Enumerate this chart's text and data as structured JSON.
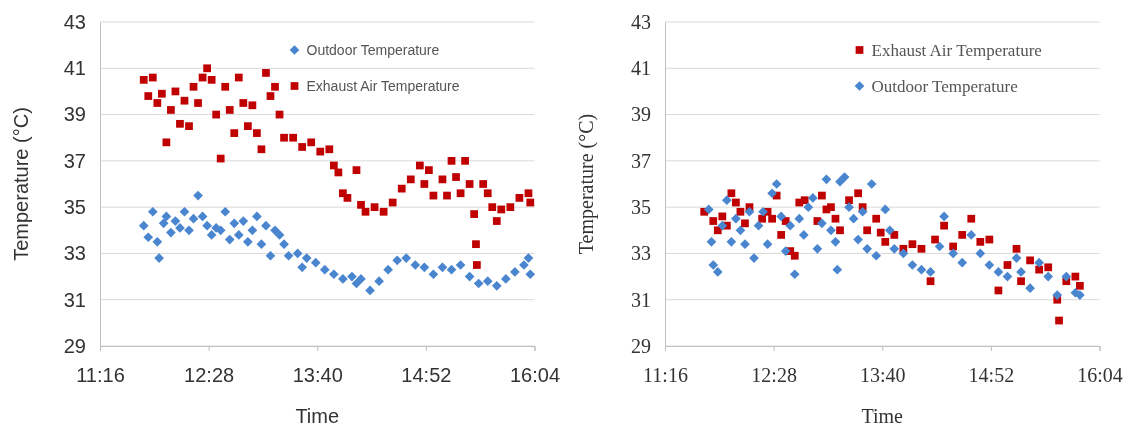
{
  "chart_data": [
    {
      "type": "scatter",
      "xlabel": "Time",
      "ylabel": "Temperature (°C)",
      "xlim": [
        11.2667,
        16.0667
      ],
      "ylim": [
        29,
        43
      ],
      "xticks": [
        {
          "value": 11.2667,
          "label": "11:16"
        },
        {
          "value": 12.4667,
          "label": "12:28"
        },
        {
          "value": 13.6667,
          "label": "13:40"
        },
        {
          "value": 14.8667,
          "label": "14:52"
        },
        {
          "value": 16.0667,
          "label": "16:04"
        }
      ],
      "yticks": [
        29,
        31,
        33,
        35,
        37,
        39,
        41,
        43
      ],
      "grid": "y",
      "legend": "top right",
      "series": [
        {
          "name": "Outdoor Temperature",
          "color": "#4a86cf",
          "marker": "diamond",
          "x": [
            11.75,
            11.8,
            11.85,
            11.9,
            11.92,
            11.97,
            12.0,
            12.05,
            12.1,
            12.15,
            12.2,
            12.25,
            12.3,
            12.35,
            12.4,
            12.45,
            12.5,
            12.55,
            12.6,
            12.65,
            12.7,
            12.75,
            12.8,
            12.85,
            12.9,
            12.95,
            13.0,
            13.05,
            13.1,
            13.15,
            13.2,
            13.25,
            13.3,
            13.35,
            13.45,
            13.5,
            13.55,
            13.65,
            13.75,
            13.85,
            13.95,
            14.05,
            14.1,
            14.15,
            14.25,
            14.35,
            14.45,
            14.55,
            14.65,
            14.75,
            14.85,
            14.95,
            15.05,
            15.15,
            15.25,
            15.35,
            15.45,
            15.55,
            15.65,
            15.75,
            15.85,
            15.95,
            16.0,
            16.02
          ],
          "values": [
            34.2,
            33.7,
            34.8,
            33.5,
            32.8,
            34.3,
            34.6,
            33.9,
            34.4,
            34.1,
            34.8,
            34.0,
            34.5,
            35.5,
            34.6,
            34.2,
            33.8,
            34.1,
            34.0,
            34.8,
            33.6,
            34.3,
            33.8,
            34.4,
            33.5,
            34.0,
            34.6,
            33.4,
            34.2,
            32.9,
            34.0,
            33.8,
            33.4,
            32.9,
            33.0,
            32.4,
            32.8,
            32.6,
            32.3,
            32.1,
            31.9,
            32.0,
            31.7,
            31.9,
            31.4,
            31.8,
            32.3,
            32.7,
            32.8,
            32.5,
            32.4,
            32.1,
            32.4,
            32.3,
            32.5,
            32.0,
            31.7,
            31.8,
            31.6,
            31.9,
            32.2,
            32.5,
            32.8,
            32.1
          ]
        },
        {
          "name": "Exhaust Air Temperature",
          "color": "#c00000",
          "marker": "square",
          "x": [
            11.75,
            11.8,
            11.85,
            11.9,
            11.95,
            12.0,
            12.05,
            12.1,
            12.15,
            12.2,
            12.25,
            12.3,
            12.35,
            12.4,
            12.45,
            12.5,
            12.55,
            12.6,
            12.65,
            12.7,
            12.75,
            12.8,
            12.85,
            12.9,
            12.95,
            13.0,
            13.05,
            13.1,
            13.15,
            13.2,
            13.25,
            13.3,
            13.4,
            13.5,
            13.6,
            13.7,
            13.8,
            13.85,
            13.9,
            13.95,
            14.0,
            14.1,
            14.15,
            14.2,
            14.3,
            14.4,
            14.5,
            14.6,
            14.7,
            14.8,
            14.85,
            14.9,
            14.95,
            15.05,
            15.1,
            15.15,
            15.2,
            15.25,
            15.3,
            15.35,
            15.4,
            15.42,
            15.43,
            15.5,
            15.55,
            15.6,
            15.65,
            15.7,
            15.8,
            15.9,
            16.0,
            16.02
          ],
          "values": [
            40.5,
            39.8,
            40.6,
            39.5,
            39.9,
            37.8,
            39.2,
            40.0,
            38.6,
            39.6,
            38.5,
            40.2,
            39.5,
            40.6,
            41.0,
            40.5,
            39.0,
            37.1,
            40.2,
            39.2,
            38.2,
            40.6,
            39.5,
            38.5,
            39.4,
            38.2,
            37.5,
            40.8,
            39.8,
            40.2,
            39.0,
            38.0,
            38.0,
            37.6,
            37.8,
            37.4,
            37.5,
            36.8,
            36.5,
            35.6,
            35.4,
            36.6,
            35.1,
            34.8,
            35.0,
            34.8,
            35.2,
            35.8,
            36.2,
            36.8,
            36.0,
            36.6,
            35.5,
            36.2,
            35.5,
            37.0,
            36.3,
            35.6,
            37.0,
            36.0,
            34.7,
            33.4,
            32.5,
            36.0,
            35.6,
            35.0,
            34.4,
            34.9,
            35.0,
            35.4,
            35.6,
            35.2
          ]
        }
      ]
    },
    {
      "type": "scatter",
      "xlabel": "Time",
      "ylabel": "Temperature (°C)",
      "xlim": [
        11.2667,
        16.0667
      ],
      "ylim": [
        29,
        43
      ],
      "xticks": [
        {
          "value": 11.2667,
          "label": "11:16"
        },
        {
          "value": 12.4667,
          "label": "12:28"
        },
        {
          "value": 13.6667,
          "label": "13:40"
        },
        {
          "value": 14.8667,
          "label": "14:52"
        },
        {
          "value": 16.0667,
          "label": "16:04"
        }
      ],
      "yticks": [
        29,
        31,
        33,
        35,
        37,
        39,
        41,
        43
      ],
      "grid": "y",
      "legend": "top right",
      "series": [
        {
          "name": "Exhaust Air Temperature",
          "color": "#c00000",
          "marker": "square",
          "x": [
            11.7,
            11.8,
            11.85,
            11.9,
            11.95,
            12.0,
            12.05,
            12.1,
            12.15,
            12.2,
            12.34,
            12.4,
            12.45,
            12.5,
            12.55,
            12.6,
            12.65,
            12.7,
            12.75,
            12.81,
            12.95,
            13.0,
            13.05,
            13.1,
            13.15,
            13.2,
            13.3,
            13.4,
            13.45,
            13.5,
            13.6,
            13.65,
            13.7,
            13.8,
            13.9,
            14.0,
            14.1,
            14.2,
            14.25,
            14.35,
            14.45,
            14.55,
            14.65,
            14.75,
            14.85,
            14.95,
            15.05,
            15.15,
            15.2,
            15.3,
            15.4,
            15.5,
            15.6,
            15.62,
            15.7,
            15.8,
            15.85
          ],
          "values": [
            34.8,
            34.4,
            34.0,
            34.6,
            34.2,
            35.6,
            35.2,
            34.8,
            34.3,
            35.0,
            34.5,
            34.8,
            34.5,
            35.5,
            33.8,
            34.4,
            33.1,
            32.9,
            35.2,
            35.3,
            34.4,
            35.5,
            34.9,
            35.0,
            34.5,
            34.0,
            35.3,
            35.6,
            35.0,
            34.0,
            34.5,
            33.9,
            33.5,
            33.8,
            33.2,
            33.4,
            33.2,
            31.8,
            33.6,
            34.2,
            33.3,
            33.8,
            34.5,
            33.5,
            33.6,
            31.4,
            32.5,
            33.2,
            31.8,
            32.7,
            32.3,
            32.4,
            31.0,
            30.1,
            31.8,
            32.0,
            31.6
          ]
        },
        {
          "name": "Outdoor Temperature",
          "color": "#4a86cf",
          "marker": "diamond",
          "x": [
            11.75,
            11.78,
            11.8,
            11.85,
            11.9,
            11.95,
            12.0,
            12.05,
            12.1,
            12.15,
            12.2,
            12.25,
            12.3,
            12.35,
            12.4,
            12.45,
            12.5,
            12.55,
            12.6,
            12.65,
            12.7,
            12.75,
            12.8,
            12.85,
            12.9,
            12.95,
            13.0,
            13.05,
            13.1,
            13.15,
            13.17,
            13.2,
            13.25,
            13.3,
            13.35,
            13.4,
            13.45,
            13.5,
            13.55,
            13.6,
            13.7,
            13.75,
            13.8,
            13.9,
            14.0,
            14.1,
            14.2,
            14.3,
            14.35,
            14.45,
            14.55,
            14.65,
            14.75,
            14.85,
            14.95,
            15.05,
            15.15,
            15.2,
            15.3,
            15.4,
            15.5,
            15.6,
            15.7,
            15.8,
            15.85
          ],
          "values": [
            34.9,
            33.5,
            32.5,
            32.2,
            34.2,
            35.3,
            33.5,
            34.5,
            34.0,
            33.4,
            34.8,
            32.8,
            34.2,
            34.8,
            33.4,
            35.6,
            36.0,
            34.6,
            33.1,
            34.2,
            32.1,
            34.5,
            33.8,
            35.0,
            35.4,
            33.2,
            34.3,
            36.2,
            34.0,
            33.5,
            32.3,
            36.1,
            36.3,
            35.0,
            34.5,
            33.6,
            34.8,
            33.2,
            36.0,
            32.9,
            34.9,
            34.0,
            33.2,
            33.0,
            32.5,
            32.3,
            32.2,
            33.3,
            34.6,
            33.0,
            32.6,
            33.8,
            33.0,
            32.5,
            32.2,
            32.0,
            32.8,
            32.2,
            31.5,
            32.6,
            32.0,
            31.2,
            32.0,
            31.3,
            31.2
          ]
        }
      ]
    }
  ]
}
